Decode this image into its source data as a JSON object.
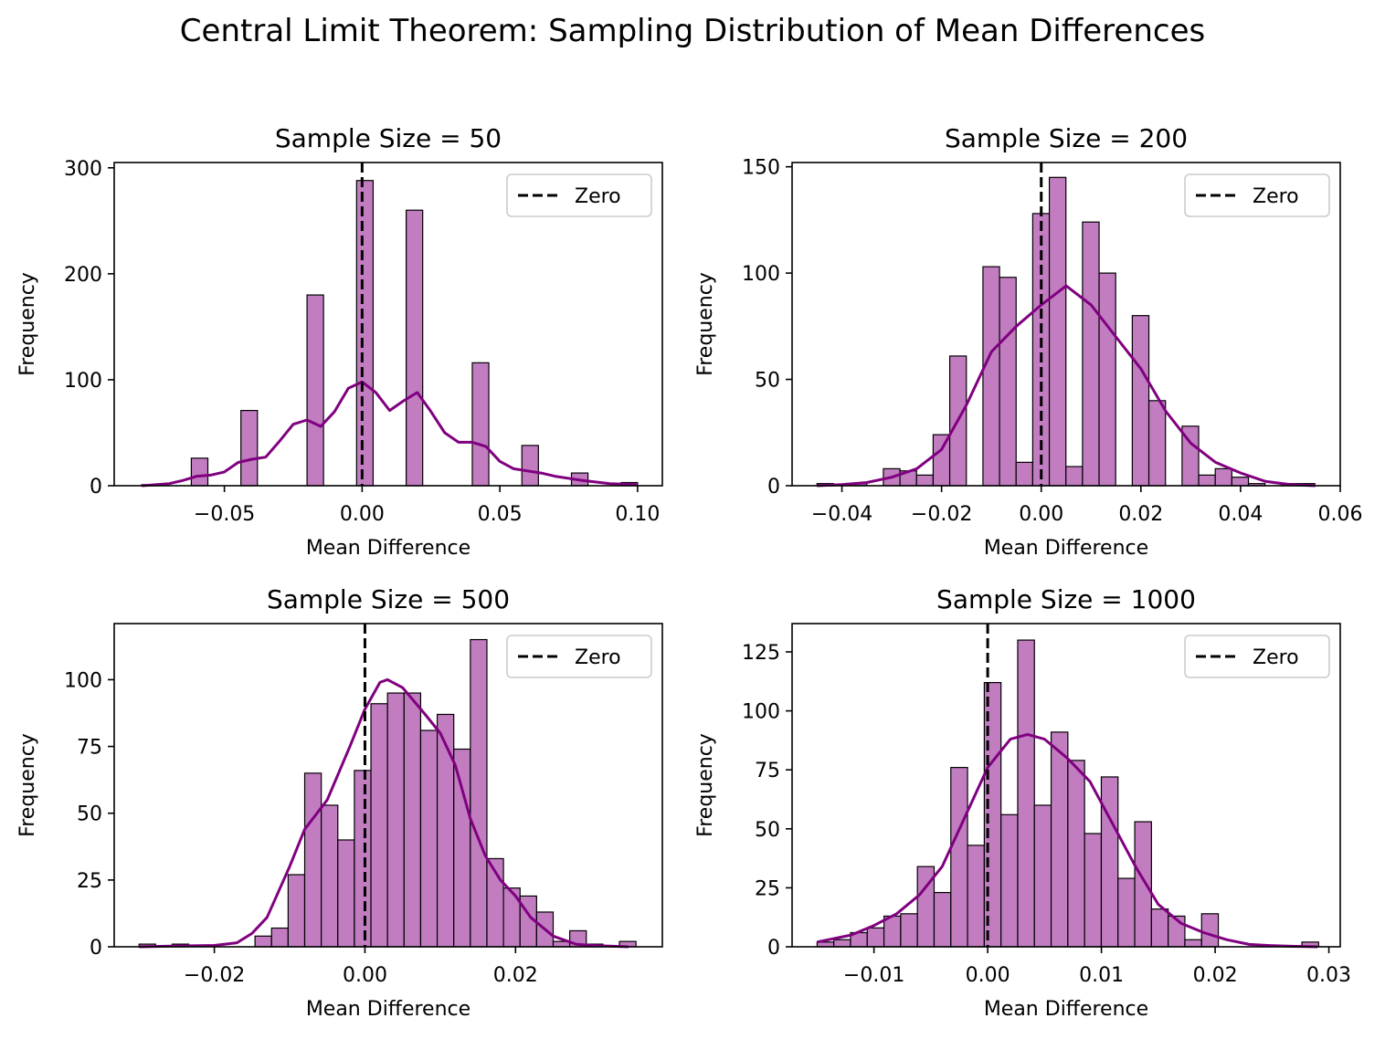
{
  "title": "Central Limit Theorem: Sampling Distribution of Mean Differences",
  "colors": {
    "bar_fill": "#c17dc0",
    "bar_edge": "#000000",
    "kde": "#800080",
    "zero_line": "#000000"
  },
  "chart_data": [
    {
      "type": "bar",
      "title": "Sample Size = 50",
      "xlabel": "Mean Difference",
      "ylabel": "Frequency",
      "xlim": [
        -0.09,
        0.109
      ],
      "ylim": [
        0,
        305
      ],
      "xticks": [
        -0.05,
        0.0,
        0.05,
        0.1
      ],
      "xtick_labels": [
        "−0.05",
        "0.00",
        "0.05",
        "0.10"
      ],
      "yticks": [
        0,
        100,
        200,
        300
      ],
      "ytick_labels": [
        "0",
        "100",
        "200",
        "300"
      ],
      "legend": {
        "label": "Zero",
        "position": "top-right"
      },
      "zero_line": 0,
      "bins": {
        "start": -0.08,
        "width": 0.006,
        "counts": [
          1,
          0,
          0,
          26,
          0,
          0,
          71,
          0,
          0,
          0,
          180,
          0,
          0,
          288,
          0,
          0,
          260,
          0,
          0,
          0,
          116,
          0,
          0,
          38,
          0,
          0,
          12,
          0,
          0,
          3
        ]
      },
      "kde": {
        "x": [
          -0.08,
          -0.07,
          -0.065,
          -0.06,
          -0.055,
          -0.05,
          -0.045,
          -0.04,
          -0.035,
          -0.03,
          -0.025,
          -0.02,
          -0.015,
          -0.01,
          -0.005,
          0.0,
          0.005,
          0.01,
          0.015,
          0.02,
          0.025,
          0.03,
          0.035,
          0.04,
          0.045,
          0.05,
          0.055,
          0.06,
          0.065,
          0.07,
          0.08,
          0.09,
          0.1
        ],
        "y": [
          0,
          2,
          5,
          9,
          10,
          13,
          22,
          25,
          27,
          42,
          58,
          62,
          56,
          70,
          92,
          98,
          88,
          71,
          80,
          88,
          70,
          50,
          41,
          41,
          37,
          23,
          16,
          14,
          12,
          9,
          5,
          2,
          1
        ]
      }
    },
    {
      "type": "bar",
      "title": "Sample Size = 200",
      "xlabel": "Mean Difference",
      "ylabel": "Frequency",
      "xlim": [
        -0.05,
        0.06
      ],
      "ylim": [
        0,
        152
      ],
      "xticks": [
        -0.04,
        -0.02,
        0.0,
        0.02,
        0.04,
        0.06
      ],
      "xtick_labels": [
        "−0.04",
        "−0.02",
        "0.00",
        "0.02",
        "0.04",
        "0.06"
      ],
      "yticks": [
        0,
        50,
        100,
        150
      ],
      "ytick_labels": [
        "0",
        "50",
        "100",
        "150"
      ],
      "legend": {
        "label": "Zero",
        "position": "top-right"
      },
      "zero_line": 0,
      "bins": {
        "start": -0.045,
        "width": 0.00333,
        "counts": [
          1,
          0,
          1,
          0,
          8,
          7,
          5,
          24,
          61,
          0,
          103,
          98,
          11,
          128,
          145,
          9,
          124,
          100,
          0,
          80,
          40,
          0,
          28,
          5,
          8,
          4,
          1,
          0,
          1,
          1
        ]
      },
      "kde": {
        "x": [
          -0.045,
          -0.04,
          -0.035,
          -0.03,
          -0.025,
          -0.02,
          -0.015,
          -0.01,
          -0.005,
          0.0,
          0.005,
          0.01,
          0.015,
          0.02,
          0.025,
          0.03,
          0.035,
          0.04,
          0.045,
          0.05,
          0.055
        ],
        "y": [
          0,
          0.5,
          1.5,
          4,
          8,
          17,
          38,
          63,
          75,
          85,
          94,
          85,
          70,
          55,
          35,
          20,
          11,
          6,
          2,
          0.5,
          0
        ]
      }
    },
    {
      "type": "bar",
      "title": "Sample Size = 500",
      "xlabel": "Mean Difference",
      "ylabel": "Frequency",
      "xlim": [
        -0.0333,
        0.0395
      ],
      "ylim": [
        0,
        121
      ],
      "xticks": [
        -0.02,
        0.0,
        0.02
      ],
      "xtick_labels": [
        "−0.02",
        "0.00",
        "0.02"
      ],
      "yticks": [
        0,
        25,
        50,
        75,
        100
      ],
      "ytick_labels": [
        "0",
        "25",
        "50",
        "75",
        "100"
      ],
      "legend": {
        "label": "Zero",
        "position": "top-right"
      },
      "zero_line": 0,
      "bins": {
        "start": -0.03,
        "width": 0.0022,
        "counts": [
          1,
          0,
          1,
          0,
          0,
          0,
          0,
          4,
          7,
          27,
          65,
          53,
          40,
          66,
          91,
          95,
          95,
          81,
          87,
          74,
          115,
          33,
          22,
          19,
          13,
          2,
          6,
          1,
          0,
          2
        ]
      },
      "kde": {
        "x": [
          -0.03,
          -0.025,
          -0.02,
          -0.017,
          -0.015,
          -0.013,
          -0.01,
          -0.008,
          -0.005,
          -0.002,
          0.0,
          0.002,
          0.003,
          0.005,
          0.008,
          0.01,
          0.012,
          0.014,
          0.016,
          0.018,
          0.02,
          0.022,
          0.025,
          0.028,
          0.03,
          0.035
        ],
        "y": [
          0,
          0.3,
          0.5,
          1.5,
          5,
          11,
          30,
          44,
          55,
          75,
          89,
          99,
          100,
          97,
          87,
          80,
          68,
          48,
          34,
          25,
          19,
          11,
          4,
          1,
          0.5,
          0
        ]
      }
    },
    {
      "type": "bar",
      "title": "Sample Size = 1000",
      "xlabel": "Mean Difference",
      "ylabel": "Frequency",
      "xlim": [
        -0.0172,
        0.031
      ],
      "ylim": [
        0,
        137
      ],
      "xticks": [
        -0.01,
        0.0,
        0.01,
        0.02,
        0.03
      ],
      "xtick_labels": [
        "−0.01",
        "0.00",
        "0.01",
        "0.02",
        "0.03"
      ],
      "yticks": [
        0,
        25,
        50,
        75,
        100,
        125
      ],
      "ytick_labels": [
        "0",
        "25",
        "50",
        "75",
        "100",
        "125"
      ],
      "legend": {
        "label": "Zero",
        "position": "top-right"
      },
      "zero_line": 0,
      "bins": {
        "start": -0.015,
        "width": 0.00147,
        "counts": [
          2,
          3,
          6,
          8,
          13,
          14,
          34,
          23,
          76,
          43,
          112,
          56,
          130,
          60,
          91,
          79,
          48,
          72,
          29,
          53,
          16,
          13,
          3,
          14,
          0,
          0,
          0,
          0,
          0,
          2
        ]
      },
      "kde": {
        "x": [
          -0.015,
          -0.012,
          -0.01,
          -0.008,
          -0.006,
          -0.004,
          -0.002,
          0.0,
          0.002,
          0.0035,
          0.005,
          0.007,
          0.009,
          0.011,
          0.013,
          0.015,
          0.017,
          0.019,
          0.021,
          0.023,
          0.025,
          0.027,
          0.029
        ],
        "y": [
          2,
          5,
          9,
          14,
          22,
          34,
          55,
          76,
          88,
          90,
          88,
          80,
          70,
          52,
          34,
          18,
          10,
          6,
          3,
          1,
          0.5,
          0.2,
          0
        ]
      }
    }
  ]
}
